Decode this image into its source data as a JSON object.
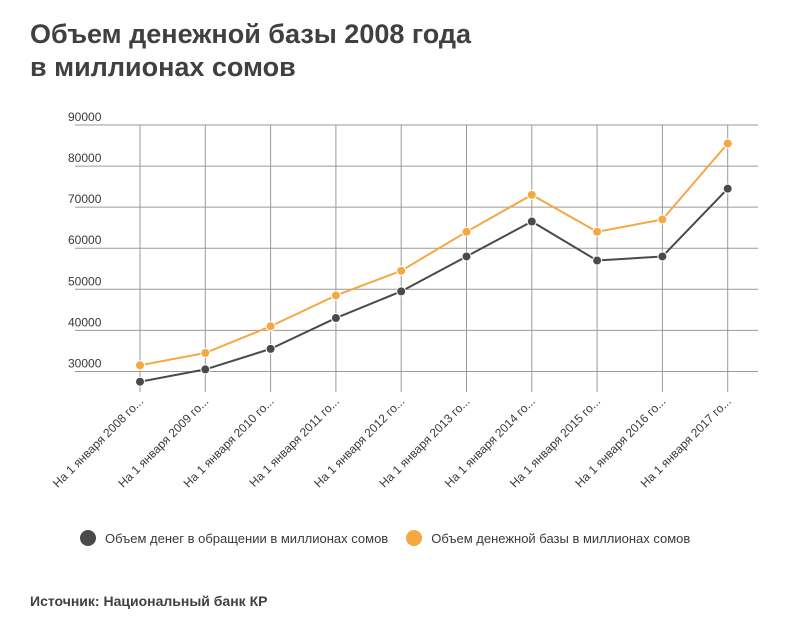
{
  "title": {
    "line1": "Объем денежной базы 2008 года",
    "line2": "в миллионах сомов"
  },
  "source": "Источник: Национальный банк КР",
  "colors": {
    "series_dark": "#4a4a4a",
    "series_orange": "#f5a742",
    "grid": "#9a9a9a"
  },
  "chart_data": {
    "type": "line",
    "title": "Объем денежной базы 2008 года в миллионах сомов",
    "xlabel": "",
    "ylabel": "",
    "ylim": [
      25000,
      90000
    ],
    "yticks": [
      30000,
      40000,
      50000,
      60000,
      70000,
      80000,
      90000
    ],
    "grid": true,
    "legend_position": "bottom",
    "categories": [
      "На 1 января 2008 го...",
      "На 1 января 2009 го...",
      "На 1 января 2010 го...",
      "На 1 января 2011 го...",
      "На 1 января 2012 го...",
      "На 1 января 2013 го...",
      "На 1 января 2014 го...",
      "На 1 января 2015 го...",
      "На 1 января 2016 го...",
      "На 1 января 2017 го..."
    ],
    "series": [
      {
        "name": "Объем денег в обращении в миллионах сомов",
        "color": "#4a4a4a",
        "values": [
          27500,
          30500,
          35500,
          43000,
          49500,
          58000,
          66500,
          57000,
          58000,
          74500
        ]
      },
      {
        "name": "Объем денежной базы в миллионах сомов",
        "color": "#f5a742",
        "values": [
          31500,
          34500,
          41000,
          48500,
          54500,
          64000,
          73000,
          64000,
          67000,
          85500
        ]
      }
    ]
  }
}
